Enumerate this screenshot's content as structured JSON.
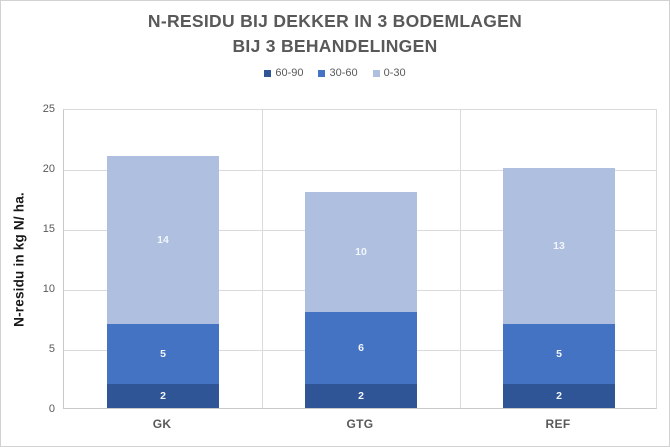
{
  "chart_data": {
    "type": "bar",
    "stacked": true,
    "title": "N-RESIDU BIJ DEKKER IN 3 BODEMLAGEN BIJ 3 BEHANDELINGEN",
    "title_lines": [
      "N-RESIDU BIJ DEKKER IN 3 BODEMLAGEN",
      "BIJ 3 BEHANDELINGEN"
    ],
    "xlabel": "",
    "ylabel": "N-residu in kg N/ ha.",
    "categories": [
      "GK",
      "GTG",
      "REF"
    ],
    "series": [
      {
        "name": "60-90",
        "color": "#2F5597",
        "values": [
          2,
          2,
          2
        ]
      },
      {
        "name": "30-60",
        "color": "#4473C3",
        "values": [
          5,
          6,
          5
        ]
      },
      {
        "name": "0-30",
        "color": "#AFBFDF",
        "values": [
          14,
          10,
          13
        ]
      }
    ],
    "stack_totals": [
      21,
      18,
      20
    ],
    "ylim": [
      0,
      25
    ],
    "yticks": [
      0,
      5,
      10,
      15,
      20,
      25
    ],
    "grid": {
      "horizontal": true,
      "vertical_category_dividers": true
    },
    "legend_position": "top",
    "data_labels": {
      "show": true,
      "color": "#FFFFFF",
      "placement": "center of each segment"
    }
  },
  "colors": {
    "title_text": "#595959",
    "tick_text": "#595959",
    "gridline": "#DADADA",
    "background": "#FFFFFF"
  }
}
